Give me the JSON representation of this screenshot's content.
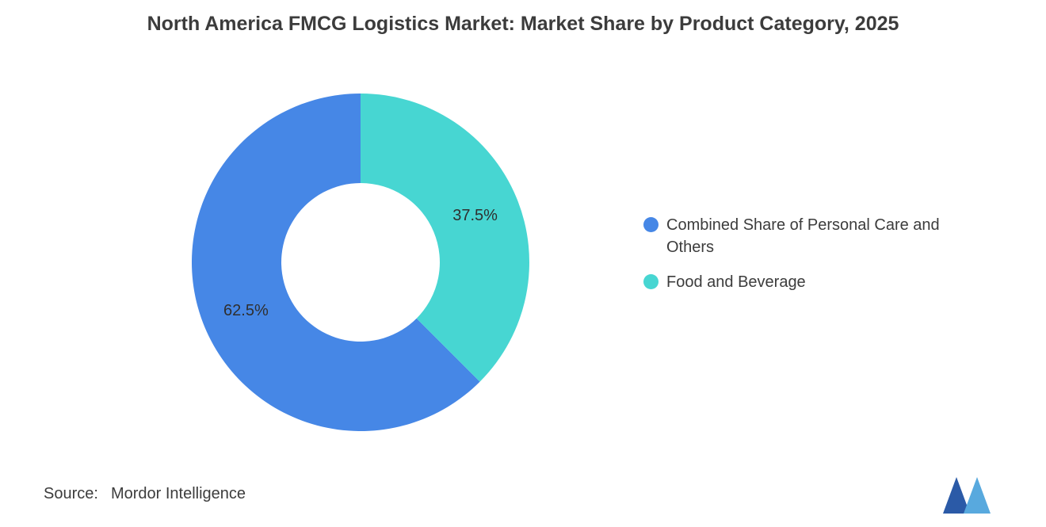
{
  "title": "North America FMCG Logistics Market: Market Share by Product Category, 2025",
  "chart_data": {
    "type": "pie",
    "subtype": "donut",
    "inner_radius_ratio": 0.47,
    "start_angle_deg": -90,
    "direction": "counterclockwise",
    "legend_position": "right",
    "segments": [
      {
        "label": "Combined Share of Personal Care and Others",
        "value": 62.5,
        "display": "62.5%",
        "color": "#4687E6"
      },
      {
        "label": "Food and Beverage",
        "value": 37.5,
        "display": "37.5%",
        "color": "#47D6D2"
      }
    ]
  },
  "source": {
    "prefix": "Source:",
    "name": "Mordor Intelligence"
  },
  "logo": {
    "label": "mordor-intelligence-logo",
    "colors": {
      "dark": "#2B5AA7",
      "light": "#58A9DE"
    }
  }
}
